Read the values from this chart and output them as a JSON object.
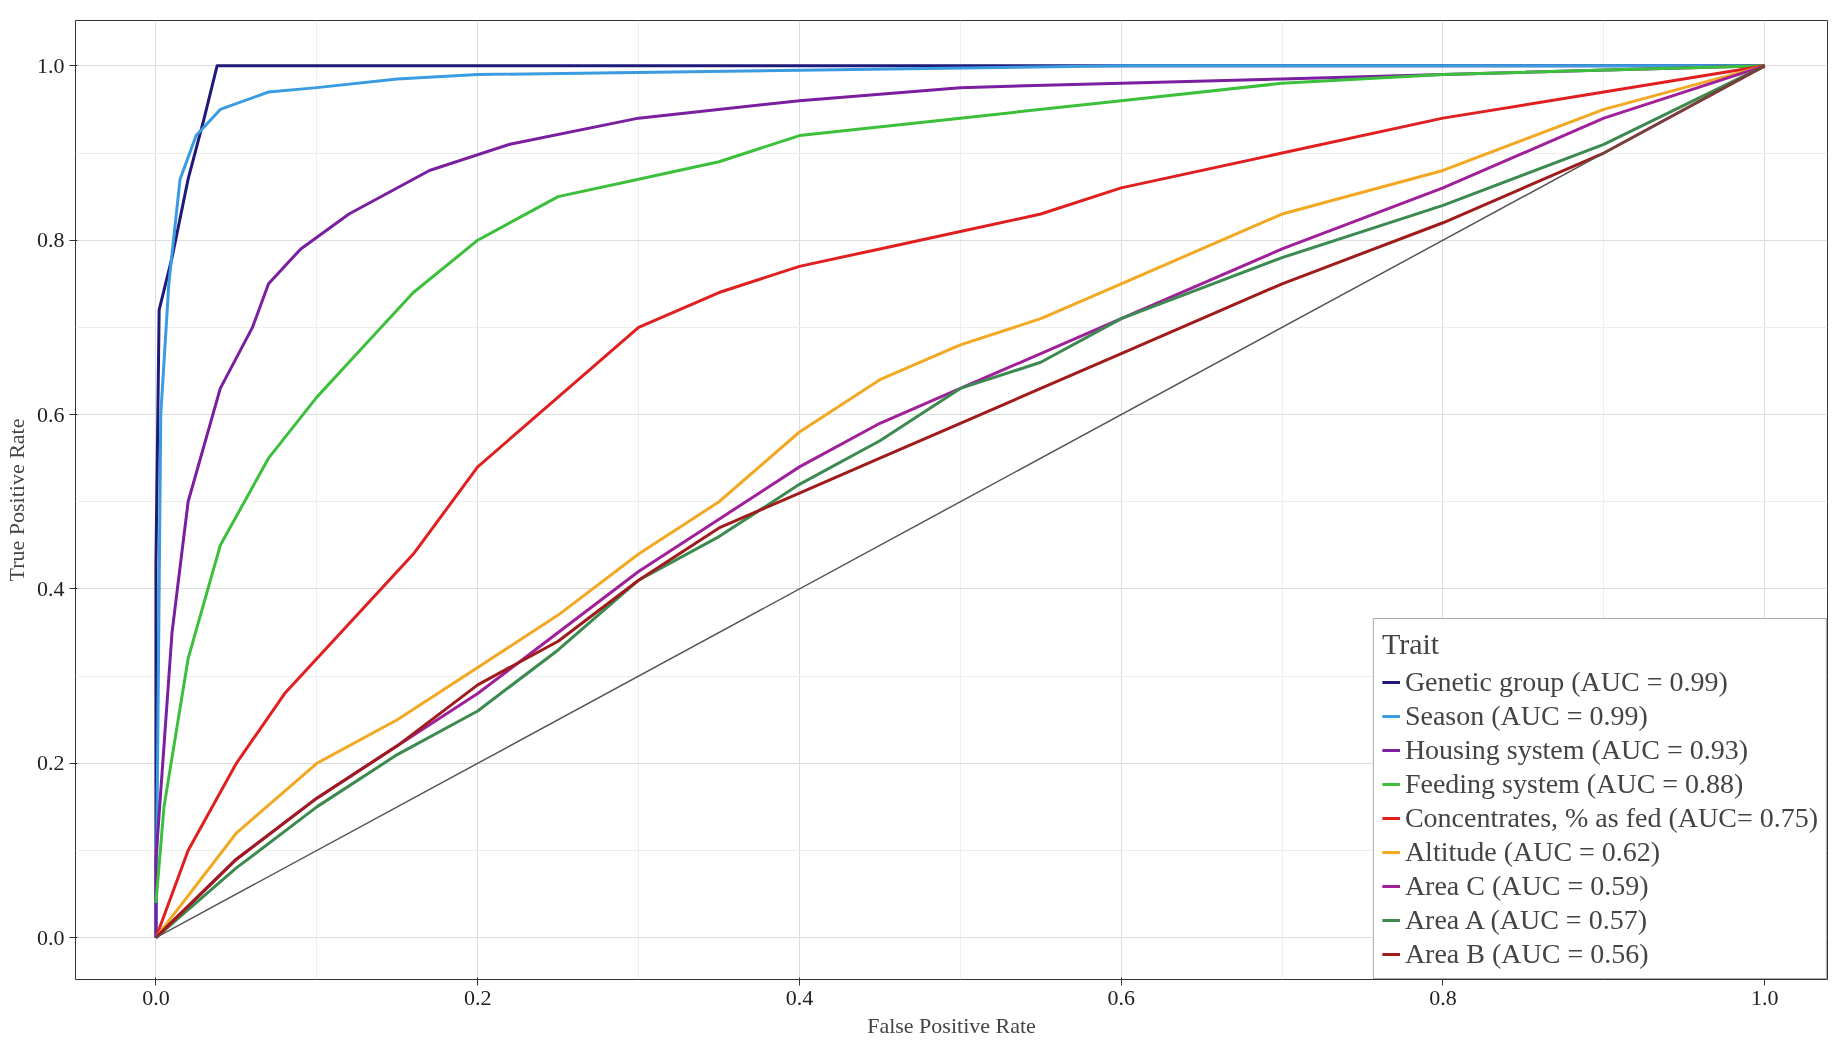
{
  "chart_data": {
    "type": "line",
    "xlabel": "False Positive Rate",
    "ylabel": "True Positive Rate",
    "legend_title": "Trait",
    "legend": "bottom right",
    "grid": true,
    "line_style": "solid",
    "marker": "none",
    "xlim": [
      -0.05,
      1.039
    ],
    "ylim": [
      -0.048,
      1.052
    ],
    "xticks": [
      {
        "value": 0,
        "label": "0.0"
      },
      0.2,
      0.4,
      0.6,
      0.8,
      {
        "value": 1,
        "label": "1.0"
      }
    ],
    "yticks": [
      {
        "value": 0,
        "label": "0.0"
      },
      0.2,
      0.4,
      0.6,
      0.8,
      {
        "value": 1,
        "label": "1.0"
      }
    ],
    "series": [
      {
        "name": "Genetic group (AUC = 0.99)",
        "color": "#1f1a7a",
        "x": [
          0,
          0,
          0.002,
          0.01,
          0.02,
          0.03,
          0.038,
          1
        ],
        "values": [
          0,
          0.43,
          0.72,
          0.78,
          0.87,
          0.94,
          1.0,
          1.0
        ]
      },
      {
        "name": "Season (AUC = 0.99)",
        "color": "#3a9be0",
        "x": [
          0,
          0.001,
          0.003,
          0.008,
          0.015,
          0.025,
          0.04,
          0.07,
          0.1,
          0.15,
          0.2,
          0.4,
          0.6,
          1
        ],
        "values": [
          0,
          0.2,
          0.6,
          0.75,
          0.87,
          0.92,
          0.95,
          0.97,
          0.975,
          0.985,
          0.99,
          0.995,
          1.0,
          1.0
        ]
      },
      {
        "name": "Housing system (AUC = 0.93)",
        "color": "#7a1fa0",
        "x": [
          0,
          0,
          0.01,
          0.02,
          0.04,
          0.06,
          0.07,
          0.09,
          0.12,
          0.17,
          0.22,
          0.3,
          0.4,
          0.5,
          0.6,
          0.7,
          0.8,
          1
        ],
        "values": [
          0,
          0.09,
          0.35,
          0.5,
          0.63,
          0.7,
          0.75,
          0.79,
          0.83,
          0.88,
          0.91,
          0.94,
          0.96,
          0.975,
          0.98,
          0.985,
          0.99,
          1.0
        ]
      },
      {
        "name": "Feeding system (AUC = 0.88)",
        "color": "#3cc03c",
        "x": [
          0,
          0.005,
          0.02,
          0.04,
          0.07,
          0.1,
          0.13,
          0.16,
          0.2,
          0.25,
          0.3,
          0.35,
          0.4,
          0.5,
          0.6,
          0.7,
          0.8,
          1
        ],
        "values": [
          0.04,
          0.15,
          0.32,
          0.45,
          0.55,
          0.62,
          0.68,
          0.74,
          0.8,
          0.85,
          0.87,
          0.89,
          0.92,
          0.94,
          0.96,
          0.98,
          0.99,
          1.0
        ]
      },
      {
        "name": "Concentrates, % as fed (AUC= 0.75)",
        "color": "#e02020",
        "x": [
          0,
          0.02,
          0.05,
          0.08,
          0.12,
          0.16,
          0.2,
          0.25,
          0.3,
          0.35,
          0.4,
          0.45,
          0.5,
          0.55,
          0.6,
          0.7,
          0.8,
          0.9,
          1
        ],
        "values": [
          0,
          0.1,
          0.2,
          0.28,
          0.36,
          0.44,
          0.54,
          0.62,
          0.7,
          0.74,
          0.77,
          0.79,
          0.81,
          0.83,
          0.86,
          0.9,
          0.94,
          0.97,
          1.0
        ]
      },
      {
        "name": "Altitude (AUC = 0.62)",
        "color": "#f2a822",
        "x": [
          0,
          0.05,
          0.1,
          0.15,
          0.2,
          0.25,
          0.3,
          0.35,
          0.4,
          0.45,
          0.5,
          0.55,
          0.6,
          0.7,
          0.8,
          0.9,
          1
        ],
        "values": [
          0,
          0.12,
          0.2,
          0.25,
          0.31,
          0.37,
          0.44,
          0.5,
          0.58,
          0.64,
          0.68,
          0.71,
          0.75,
          0.83,
          0.88,
          0.95,
          1.0
        ]
      },
      {
        "name": "Area C (AUC = 0.59)",
        "color": "#a0209a",
        "x": [
          0,
          0.05,
          0.1,
          0.15,
          0.2,
          0.25,
          0.3,
          0.35,
          0.4,
          0.45,
          0.5,
          0.6,
          0.7,
          0.8,
          0.9,
          1
        ],
        "values": [
          0,
          0.09,
          0.16,
          0.22,
          0.28,
          0.35,
          0.42,
          0.48,
          0.54,
          0.59,
          0.63,
          0.71,
          0.79,
          0.86,
          0.94,
          1.0
        ]
      },
      {
        "name": "Area A (AUC = 0.57)",
        "color": "#3c8a50",
        "x": [
          0,
          0.05,
          0.1,
          0.15,
          0.2,
          0.25,
          0.3,
          0.35,
          0.4,
          0.45,
          0.5,
          0.55,
          0.6,
          0.7,
          0.8,
          0.9,
          1
        ],
        "values": [
          0,
          0.08,
          0.15,
          0.21,
          0.26,
          0.33,
          0.41,
          0.46,
          0.52,
          0.57,
          0.63,
          0.66,
          0.71,
          0.78,
          0.84,
          0.91,
          1.0
        ]
      },
      {
        "name": "Area B (AUC = 0.56)",
        "color": "#a01c1c",
        "x": [
          0,
          0.05,
          0.1,
          0.15,
          0.2,
          0.25,
          0.3,
          0.35,
          0.4,
          0.45,
          0.5,
          0.55,
          0.6,
          0.7,
          0.8,
          0.9,
          1
        ],
        "values": [
          0,
          0.09,
          0.16,
          0.22,
          0.29,
          0.34,
          0.41,
          0.47,
          0.51,
          0.55,
          0.59,
          0.63,
          0.67,
          0.75,
          0.82,
          0.9,
          1.0
        ]
      },
      {
        "color": "#555555",
        "x": [
          0,
          1
        ],
        "values": [
          0,
          1
        ]
      }
    ]
  }
}
